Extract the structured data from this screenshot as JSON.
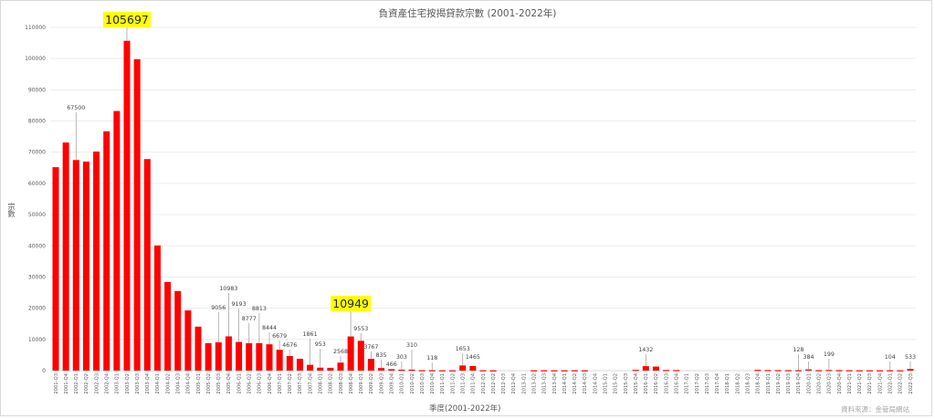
{
  "chart_data": {
    "type": "bar",
    "title": "負資產住宅按揭貸款宗數 (2001-2022年)",
    "xlabel": "季度(2001-2022年)",
    "ylabel": "宗數",
    "source": "資料來源：金管局網站",
    "ylim": [
      0,
      110000
    ],
    "yticks": [
      0,
      10000,
      20000,
      30000,
      40000,
      50000,
      60000,
      70000,
      80000,
      90000,
      100000,
      110000
    ],
    "grid": true,
    "legend": "none",
    "bar_color": "#ff0000",
    "highlight_color": "#ffff00",
    "categories": [
      "2001-Q3",
      "2001-Q4",
      "2002-Q1",
      "2002-Q2",
      "2002-Q3",
      "2002-Q4",
      "2003-Q1",
      "2003-Q2",
      "2003-Q3",
      "2003-Q4",
      "2004-Q1",
      "2004-Q2",
      "2004-Q3",
      "2004-Q4",
      "2005-Q1",
      "2005-Q2",
      "2005-Q3",
      "2005-Q4",
      "2006-Q1",
      "2006-Q2",
      "2006-Q3",
      "2006-Q4",
      "2007-Q1",
      "2007-Q2",
      "2007-Q3",
      "2007-Q4",
      "2008-Q1",
      "2008-Q2",
      "2008-Q3",
      "2008-Q4",
      "2009-Q1",
      "2009-Q2",
      "2009-Q3",
      "2009-Q4",
      "2010-Q1",
      "2010-Q2",
      "2010-Q3",
      "2010-Q4",
      "2011-Q1",
      "2011-Q2",
      "2011-Q3",
      "2011-Q4",
      "2012-Q1",
      "2012-Q2",
      "2012-Q3",
      "2012-Q4",
      "2013-Q1",
      "2013-Q2",
      "2013-Q3",
      "2013-Q4",
      "2014-Q1",
      "2014-Q2",
      "2014-Q3",
      "2014-Q4",
      "2015-Q1",
      "2015-Q2",
      "2015-Q3",
      "2015-Q4",
      "2016-Q1",
      "2016-Q2",
      "2016-Q3",
      "2016-Q4",
      "2017-Q1",
      "2017-Q2",
      "2017-Q3",
      "2017-Q4",
      "2018-Q1",
      "2018-Q2",
      "2018-Q3",
      "2018-Q4",
      "2019-Q1",
      "2019-Q2",
      "2019-Q3",
      "2019-Q4",
      "2020-Q1",
      "2020-Q2",
      "2020-Q3",
      "2020-Q4",
      "2021-Q1",
      "2021-Q2",
      "2021-Q3",
      "2021-Q4",
      "2022-Q1",
      "2022-Q2",
      "2022-Q3"
    ],
    "values": [
      65200,
      73100,
      67500,
      67000,
      70200,
      76700,
      83200,
      105697,
      99800,
      67800,
      40100,
      28400,
      25500,
      19300,
      14100,
      8800,
      9056,
      10983,
      9193,
      8777,
      8813,
      8444,
      6679,
      4676,
      3800,
      1861,
      953,
      900,
      2568,
      10949,
      9553,
      3767,
      835,
      466,
      303,
      310,
      150,
      118,
      100,
      90,
      1653,
      1465,
      120,
      80,
      0,
      0,
      0,
      100,
      110,
      100,
      95,
      100,
      90,
      0,
      0,
      0,
      0,
      240,
      1432,
      1300,
      200,
      180,
      0,
      0,
      0,
      0,
      0,
      0,
      0,
      250,
      180,
      150,
      140,
      128,
      384,
      150,
      199,
      160,
      120,
      110,
      110,
      100,
      104,
      100,
      533
    ],
    "annotations": [
      {
        "category": "2002-Q1",
        "label": "67500"
      },
      {
        "category": "2005-Q3",
        "label": "9056"
      },
      {
        "category": "2005-Q4",
        "label": "10983"
      },
      {
        "category": "2006-Q1",
        "label": "9193"
      },
      {
        "category": "2006-Q2",
        "label": "8777"
      },
      {
        "category": "2006-Q3",
        "label": "8813"
      },
      {
        "category": "2006-Q4",
        "label": "8444"
      },
      {
        "category": "2007-Q1",
        "label": "6679"
      },
      {
        "category": "2007-Q2",
        "label": "4676"
      },
      {
        "category": "2007-Q4",
        "label": "1861"
      },
      {
        "category": "2008-Q1",
        "label": "953"
      },
      {
        "category": "2008-Q3",
        "label": "2568"
      },
      {
        "category": "2009-Q1",
        "label": "9553"
      },
      {
        "category": "2009-Q2",
        "label": "3767"
      },
      {
        "category": "2009-Q3",
        "label": "835"
      },
      {
        "category": "2009-Q4",
        "label": "466"
      },
      {
        "category": "2010-Q1",
        "label": "303"
      },
      {
        "category": "2010-Q2",
        "label": "310"
      },
      {
        "category": "2010-Q4",
        "label": "118"
      },
      {
        "category": "2011-Q3",
        "label": "1653"
      },
      {
        "category": "2011-Q4",
        "label": "1465"
      },
      {
        "category": "2016-Q1",
        "label": "1432"
      },
      {
        "category": "2019-Q4",
        "label": "128"
      },
      {
        "category": "2020-Q1",
        "label": "384"
      },
      {
        "category": "2020-Q3",
        "label": "199"
      },
      {
        "category": "2022-Q1",
        "label": "104"
      },
      {
        "category": "2022-Q3",
        "label": "533"
      }
    ],
    "highlights": [
      {
        "category": "2003-Q2",
        "label": "105697"
      },
      {
        "category": "2008-Q4",
        "label": "10949"
      }
    ]
  }
}
